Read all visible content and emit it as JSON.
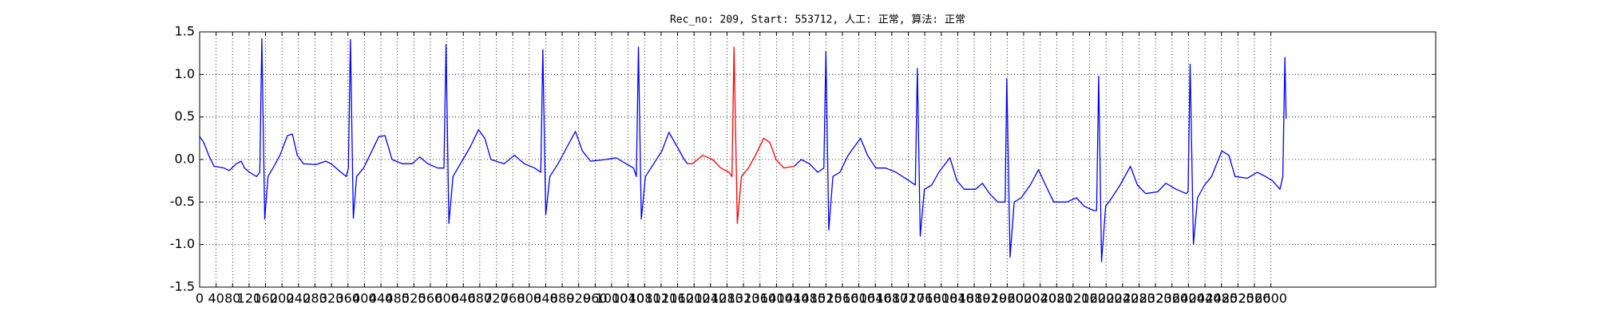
{
  "chart_data": {
    "type": "line",
    "title": "Rec_no: 209, Start: 553712, 人工: 正常, 算法: 正常",
    "xlim": [
      0,
      3000
    ],
    "xticks": [
      0,
      40,
      80,
      120,
      160,
      200,
      240,
      280,
      320,
      360,
      400,
      440,
      480,
      520,
      560,
      600,
      640,
      680,
      720,
      760,
      800,
      840,
      880,
      920,
      960,
      1000,
      1040,
      1080,
      1120,
      1160,
      1200,
      1240,
      1280,
      1320,
      1360,
      1400,
      1440,
      1480,
      1520,
      1560,
      1600,
      1640,
      1680,
      1720,
      1760,
      1800,
      1840,
      1880,
      1920,
      1960,
      2000,
      2040,
      2080,
      2120,
      2160,
      2200,
      2240,
      2280,
      2320,
      2360,
      2400,
      2440,
      2480,
      2520,
      2560,
      2600
    ],
    "ylim": [
      -1.5,
      1.5
    ],
    "yticks": [
      -1.5,
      {
        "value": -1.0,
        "label": "-1.0"
      },
      -0.5,
      {
        "value": 0.0,
        "label": "0.0"
      },
      0.5,
      {
        "value": 1.0,
        "label": "1.0"
      },
      1.5
    ],
    "grid": true,
    "series": [
      {
        "color": "#0000ff",
        "x": [
          0,
          10,
          22,
          35,
          59,
          72,
          89,
          101,
          109,
          121,
          138,
          146,
          151,
          158,
          166,
          178,
          195,
          213,
          225,
          237,
          252,
          282,
          306,
          319,
          343,
          356,
          361,
          366,
          373,
          381,
          398,
          418,
          435,
          450,
          467,
          492,
          516,
          534,
          554,
          578,
          593,
          598,
          605,
          615,
          633,
          657,
          677,
          692,
          707,
          739,
          764,
          788,
          813,
          828,
          833,
          840,
          850,
          870,
          892,
          912,
          929,
          949,
          986,
          1011,
          1035,
          1053,
          1060,
          1065,
          1072,
          1082,
          1102,
          1122,
          1139,
          1159,
          1176,
          1184
        ],
        "values": [
          0.27,
          0.2,
          0.05,
          -0.08,
          -0.1,
          -0.13,
          -0.05,
          -0.02,
          -0.1,
          -0.15,
          -0.2,
          -0.15,
          1.42,
          -0.7,
          -0.2,
          -0.1,
          0.05,
          0.28,
          0.3,
          0.05,
          -0.05,
          -0.06,
          -0.02,
          -0.05,
          -0.15,
          -0.2,
          -0.1,
          1.41,
          -0.69,
          -0.2,
          -0.1,
          0.1,
          0.27,
          0.28,
          0.0,
          -0.05,
          -0.05,
          0.03,
          -0.05,
          -0.1,
          -0.1,
          1.35,
          -0.75,
          -0.2,
          -0.05,
          0.15,
          0.35,
          0.25,
          0.0,
          -0.05,
          0.05,
          -0.05,
          -0.1,
          -0.15,
          1.29,
          -0.65,
          -0.2,
          -0.05,
          0.15,
          0.33,
          0.1,
          -0.02,
          0.0,
          0.02,
          -0.05,
          -0.1,
          -0.2,
          1.32,
          -0.7,
          -0.2,
          -0.05,
          0.1,
          0.32,
          0.15,
          0.0,
          -0.05
        ]
      },
      {
        "color": "#ff0000",
        "x": [
          1184,
          1196,
          1221,
          1245,
          1265,
          1285,
          1292,
          1297,
          1305,
          1315,
          1332,
          1349,
          1369,
          1384,
          1399,
          1418,
          1443
        ],
        "values": [
          -0.05,
          -0.05,
          0.05,
          0.0,
          -0.1,
          -0.15,
          -0.2,
          1.32,
          -0.75,
          -0.2,
          -0.1,
          0.05,
          0.25,
          0.2,
          0.0,
          -0.1,
          -0.08
        ]
      },
      {
        "color": "#0000ff",
        "x": [
          1443,
          1460,
          1480,
          1500,
          1515,
          1520,
          1527,
          1537,
          1554,
          1574,
          1604,
          1621,
          1641,
          1665,
          1690,
          1722,
          1737,
          1742,
          1749,
          1759,
          1777,
          1794,
          1821,
          1838,
          1856,
          1883,
          1900,
          1917,
          1937,
          1955,
          1959,
          1967,
          1977,
          1994,
          2016,
          2036,
          2053,
          2073,
          2105,
          2128,
          2147,
          2170,
          2177,
          2182,
          2189,
          2199,
          2214,
          2234,
          2259,
          2276,
          2296,
          2325,
          2345,
          2370,
          2394,
          2399,
          2404,
          2412,
          2422,
          2439,
          2456,
          2481,
          2498,
          2513,
          2543,
          2567,
          2587,
          2604,
          2622,
          2629,
          2634,
          2637
        ],
        "values": [
          -0.08,
          0.0,
          -0.05,
          -0.15,
          -0.1,
          1.27,
          -0.83,
          -0.2,
          -0.15,
          0.05,
          0.25,
          0.05,
          -0.1,
          -0.1,
          -0.15,
          -0.25,
          -0.3,
          1.07,
          -0.9,
          -0.35,
          -0.3,
          -0.15,
          0.02,
          -0.25,
          -0.35,
          -0.35,
          -0.28,
          -0.4,
          -0.5,
          -0.5,
          0.95,
          -1.15,
          -0.5,
          -0.45,
          -0.3,
          -0.12,
          -0.3,
          -0.5,
          -0.5,
          -0.45,
          -0.55,
          -0.6,
          -0.6,
          0.98,
          -1.2,
          -0.55,
          -0.45,
          -0.3,
          -0.08,
          -0.3,
          -0.4,
          -0.38,
          -0.28,
          -0.35,
          -0.4,
          -0.38,
          1.12,
          -1.0,
          -0.45,
          -0.3,
          -0.2,
          0.1,
          0.05,
          -0.2,
          -0.22,
          -0.15,
          -0.2,
          -0.25,
          -0.35,
          -0.2,
          1.2,
          0.48
        ]
      }
    ]
  }
}
